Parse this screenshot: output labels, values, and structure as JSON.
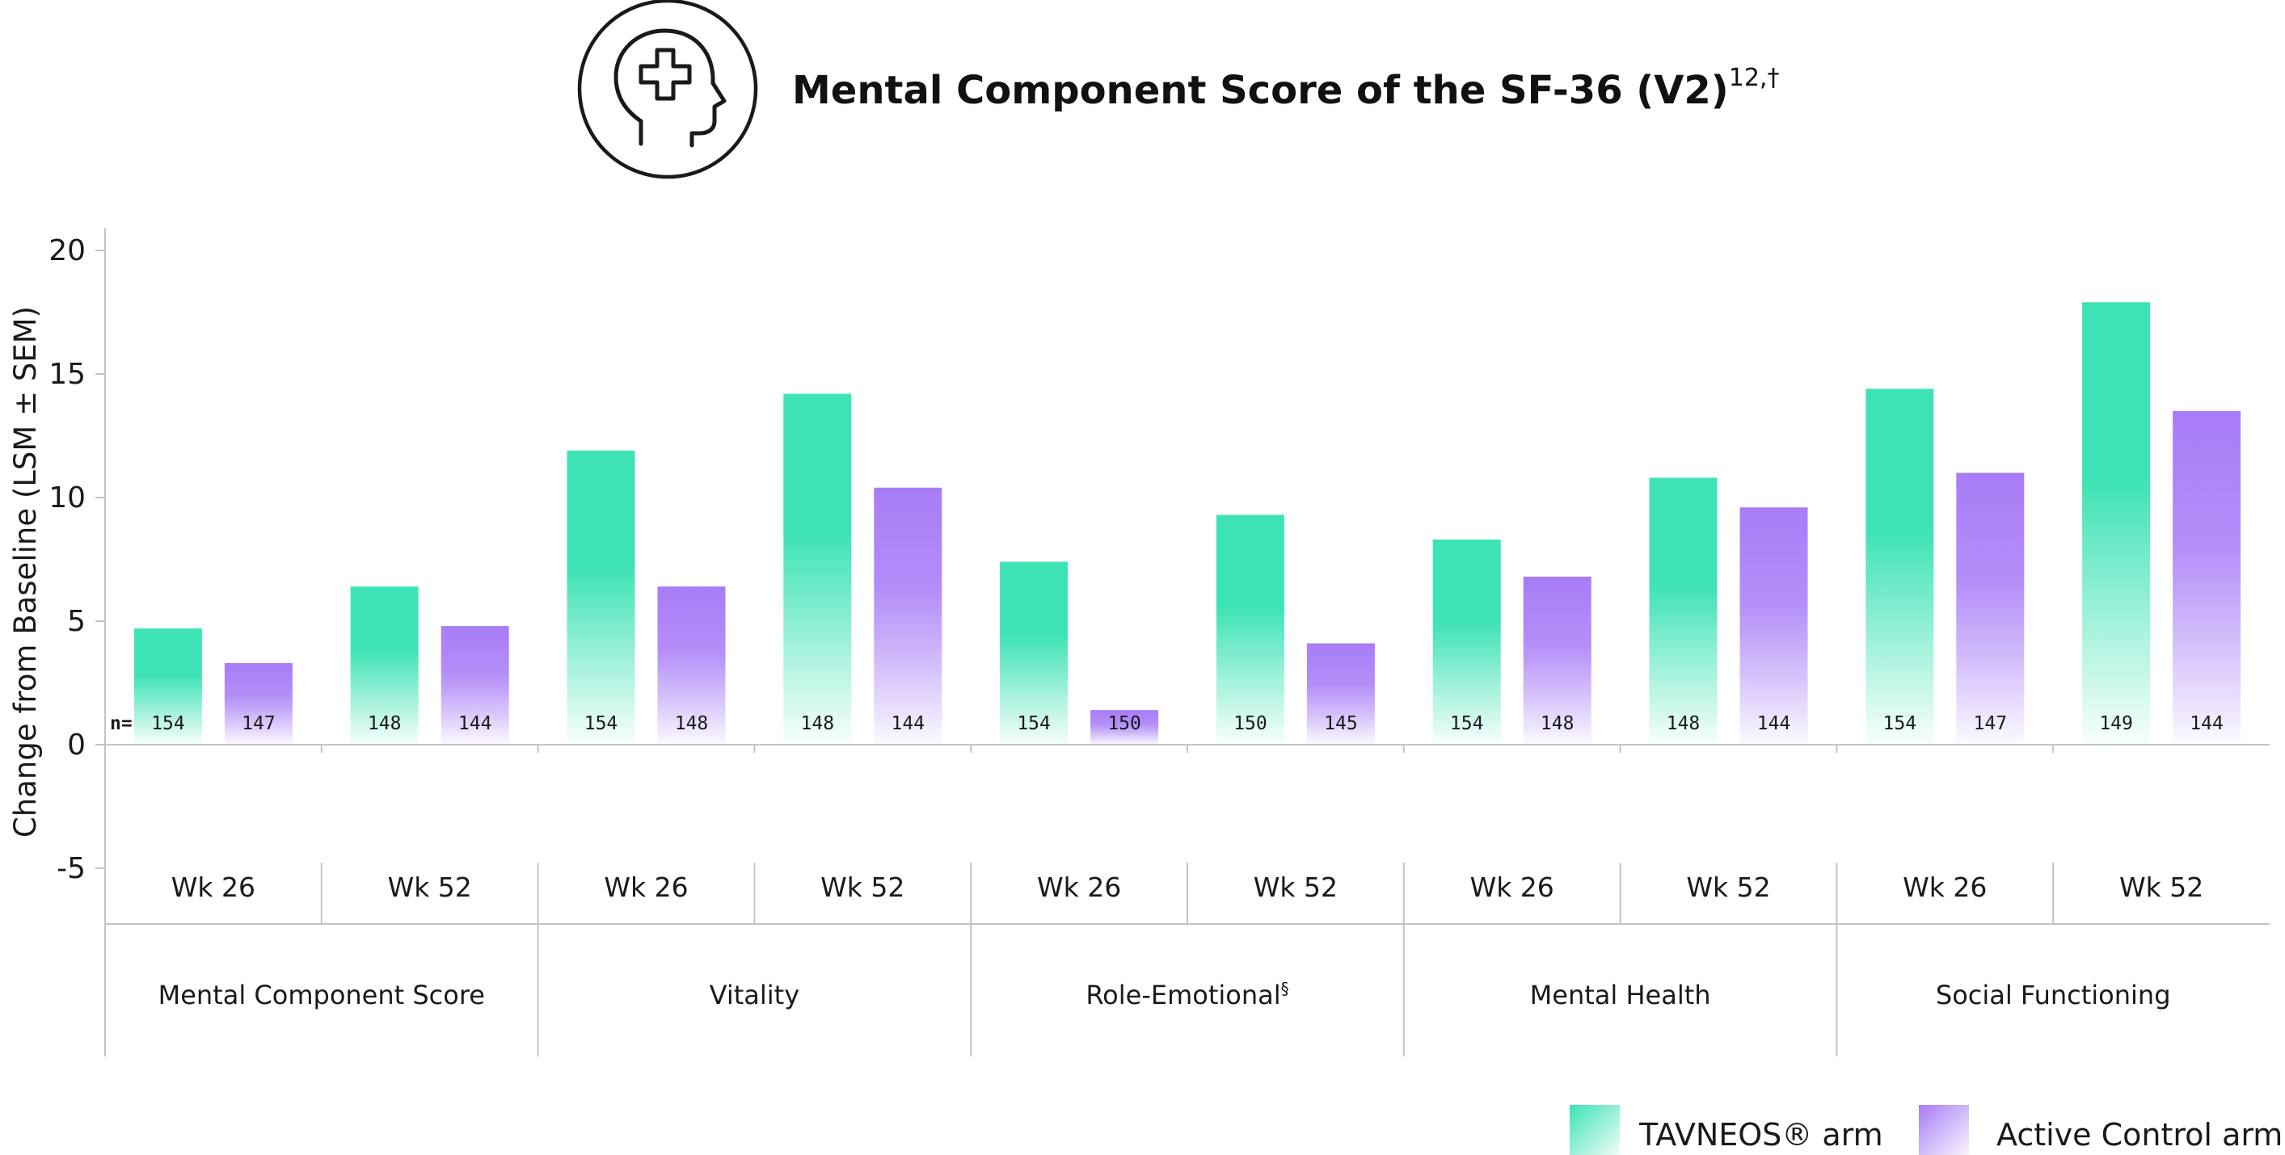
{
  "header": {
    "title": "Mental Component Score of the SF-36 (V2)",
    "title_superscript": "12,†",
    "icon": "head-with-medical-cross-icon"
  },
  "legend": {
    "placement": "bottom-right",
    "items": [
      {
        "label": "TAVNEOS® arm",
        "color": "#3ee3b5"
      },
      {
        "label": "Active Control arm",
        "color": "#a87cf7"
      }
    ]
  },
  "n_label": "n=",
  "chart_data": {
    "type": "bar",
    "ylabel": "Change from Baseline (LSM ± SEM)",
    "xlabel": "",
    "ylim": [
      -5,
      20
    ],
    "yticks": [
      20,
      15,
      10,
      5,
      0,
      -5
    ],
    "grid": false,
    "groups": [
      {
        "label": "Mental Component Score",
        "superscript": ""
      },
      {
        "label": "Vitality",
        "superscript": ""
      },
      {
        "label": "Role-Emotional",
        "superscript": "§"
      },
      {
        "label": "Mental Health",
        "superscript": ""
      },
      {
        "label": "Social Functioning",
        "superscript": ""
      }
    ],
    "categories": [
      "Wk 26",
      "Wk 52",
      "Wk 26",
      "Wk 52",
      "Wk 26",
      "Wk 52",
      "Wk 26",
      "Wk 52",
      "Wk 26",
      "Wk 52"
    ],
    "series": [
      {
        "name": "TAVNEOS® arm",
        "color": "#3ee3b5",
        "values": [
          4.7,
          6.4,
          11.9,
          14.2,
          7.4,
          9.3,
          8.3,
          10.8,
          14.4,
          17.9
        ],
        "n": [
          154,
          148,
          154,
          148,
          154,
          150,
          154,
          148,
          154,
          149
        ]
      },
      {
        "name": "Active Control arm",
        "color": "#a87cf7",
        "values": [
          3.3,
          4.8,
          6.4,
          10.4,
          1.4,
          4.1,
          6.8,
          9.6,
          11.0,
          13.5
        ],
        "n": [
          147,
          144,
          148,
          144,
          150,
          145,
          148,
          144,
          147,
          144
        ]
      }
    ]
  }
}
